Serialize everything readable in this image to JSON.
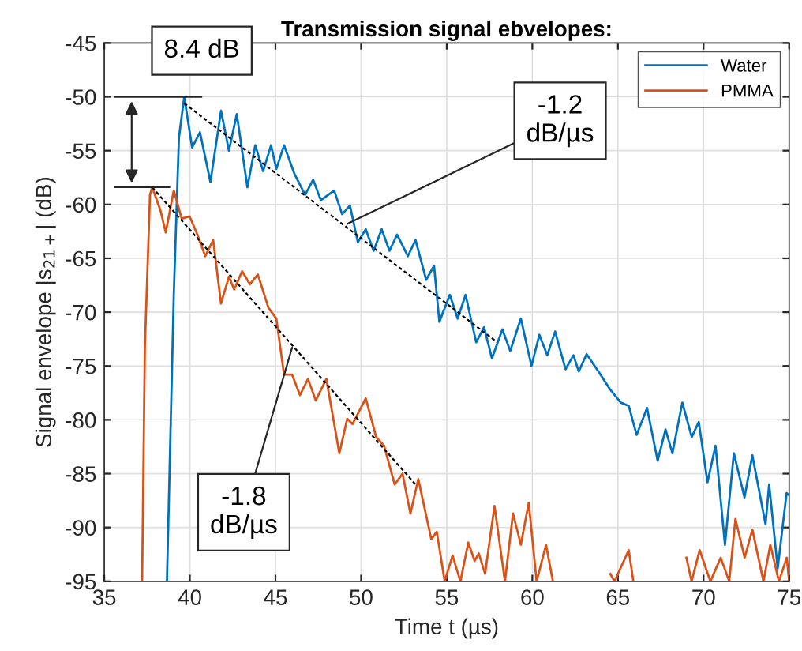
{
  "chart_data": {
    "type": "line",
    "title": "Transmission signal ebvelopes:",
    "xlabel": "Time t (µs)",
    "ylabel": "Signal envelope |s$_{21+}$| (dB)",
    "xlim": [
      35,
      75
    ],
    "xticks": [
      35,
      40,
      45,
      50,
      55,
      60,
      65,
      70,
      75
    ],
    "ylim": [
      -95,
      -45
    ],
    "yticks": [
      -95,
      -90,
      -85,
      -80,
      -75,
      -70,
      -65,
      -60,
      -55,
      -50,
      -45
    ],
    "grid": true,
    "legend": "top right",
    "line_style": "solid",
    "marker": "none",
    "series": [
      {
        "name": "Water",
        "color": "#0072bd",
        "x": [
          38.66,
          39.06,
          39.36,
          39.67,
          40.13,
          40.59,
          41.2,
          41.82,
          42.28,
          42.74,
          43.36,
          43.82,
          44.28,
          44.74,
          45.05,
          45.5,
          46.12,
          46.73,
          47.2,
          47.65,
          48.43,
          48.89,
          49.35,
          49.81,
          50.27,
          50.73,
          51.2,
          51.66,
          52.1,
          52.73,
          53.18,
          53.8,
          54.26,
          54.57,
          55.18,
          55.64,
          56.1,
          56.72,
          57.18,
          57.64,
          58.25,
          58.71,
          59.33,
          59.95,
          60.41,
          60.87,
          61.33,
          61.94,
          62.4,
          62.71,
          63.17,
          63.94,
          64.55,
          65.17,
          65.63,
          66.09,
          66.7,
          67.32,
          67.78,
          68.18,
          68.76,
          69.31,
          69.72,
          70.23,
          70.7,
          71.25,
          71.77,
          72.39,
          72.85,
          73.62,
          73.83,
          74.33,
          74.85,
          75
        ],
        "values": [
          -95,
          -68.4,
          -53.8,
          -50,
          -54.7,
          -53.3,
          -57.9,
          -51.3,
          -55,
          -51.6,
          -58.4,
          -54.5,
          -56.9,
          -54.5,
          -56.7,
          -54.5,
          -57.2,
          -59.1,
          -57.7,
          -59.6,
          -58.7,
          -60.9,
          -60.1,
          -63.5,
          -62.3,
          -64.3,
          -62.3,
          -64.3,
          -62.8,
          -64.8,
          -63.3,
          -67,
          -65.7,
          -70.9,
          -68.4,
          -70.6,
          -68.4,
          -72.8,
          -71.4,
          -74.3,
          -71.6,
          -73.6,
          -70.6,
          -75,
          -72.1,
          -74,
          -71.8,
          -75.3,
          -74,
          -75.5,
          -73.9,
          -75.7,
          -77.2,
          -78.4,
          -78.7,
          -81.4,
          -78.9,
          -83.8,
          -80.9,
          -83.1,
          -78.4,
          -81.6,
          -80.2,
          -85.8,
          -82.4,
          -91.6,
          -83.1,
          -87.2,
          -83.3,
          -89.7,
          -86,
          -93.8,
          -86.8,
          -87
        ]
      },
      {
        "name": "PMMA",
        "color": "#d95319",
        "x": [
          37.21,
          37.37,
          37.67,
          37.8,
          38.29,
          38.59,
          39.06,
          39.52,
          39.98,
          40.44,
          40.9,
          41.36,
          41.82,
          42.28,
          42.59,
          43.05,
          43.51,
          43.97,
          44.59,
          45.05,
          45.5,
          45.97,
          46.43,
          46.9,
          47.35,
          47.97,
          48.73,
          49.19,
          49.5,
          50.27,
          50.88,
          51.34,
          51.96,
          52.42,
          52.88,
          53.34,
          54.1,
          54.42,
          54.88,
          55.34,
          55.8,
          56.26,
          56.63,
          56.87,
          57.24,
          57.79,
          58.4,
          58.87,
          59.33,
          59.79,
          60.25,
          60.8,
          61.2,
          63,
          64.55,
          64.8,
          65.63,
          65.9,
          67.5,
          69.0,
          69.3,
          69.77,
          70.4,
          71.0,
          71.5,
          71.86,
          72.4,
          72.85,
          73.5,
          73.9,
          74.4,
          74.86,
          75
        ],
        "values": [
          -95,
          -73.3,
          -59.1,
          -58.4,
          -60.6,
          -62.6,
          -58.7,
          -61.3,
          -61.1,
          -62.8,
          -64.8,
          -63.3,
          -69.2,
          -66.7,
          -67.9,
          -66.2,
          -67.4,
          -66.5,
          -69.6,
          -70.6,
          -75.8,
          -75.8,
          -77.7,
          -76.2,
          -78.2,
          -76.2,
          -83.1,
          -79.9,
          -80.4,
          -78,
          -81.6,
          -82.4,
          -86,
          -85,
          -88.7,
          -85.5,
          -91.1,
          -90.4,
          -95,
          -92.6,
          -95,
          -91.4,
          -93.1,
          -92.4,
          -94.3,
          -88,
          -95,
          -88.7,
          -91.6,
          -87.7,
          -95,
          -91.6,
          -95,
          null,
          -94.3,
          -95,
          -92.1,
          -95,
          null,
          -92.8,
          -95,
          -92.1,
          -95,
          -92.8,
          -95,
          -89.2,
          -92.8,
          -90.2,
          -95,
          -91.6,
          -95,
          -92.8,
          -95
        ]
      },
      {
        "type": "line",
        "color": "#000000",
        "line_style": "dashed",
        "x": [
          39.67,
          57.95
        ],
        "values": [
          -50.6,
          -72.8
        ]
      },
      {
        "type": "line",
        "color": "#000000",
        "line_style": "dashed",
        "x": [
          37.8,
          53.18
        ],
        "values": [
          -58.4,
          -86
        ]
      }
    ],
    "annotations": [
      "8.4 dB",
      {
        "text": "-1.2\ndB/µs",
        "x": 49.2,
        "y": -61.8
      },
      {
        "text": "-1.8\ndB/µs",
        "x": 45.97,
        "y": -73.3
      }
    ]
  }
}
